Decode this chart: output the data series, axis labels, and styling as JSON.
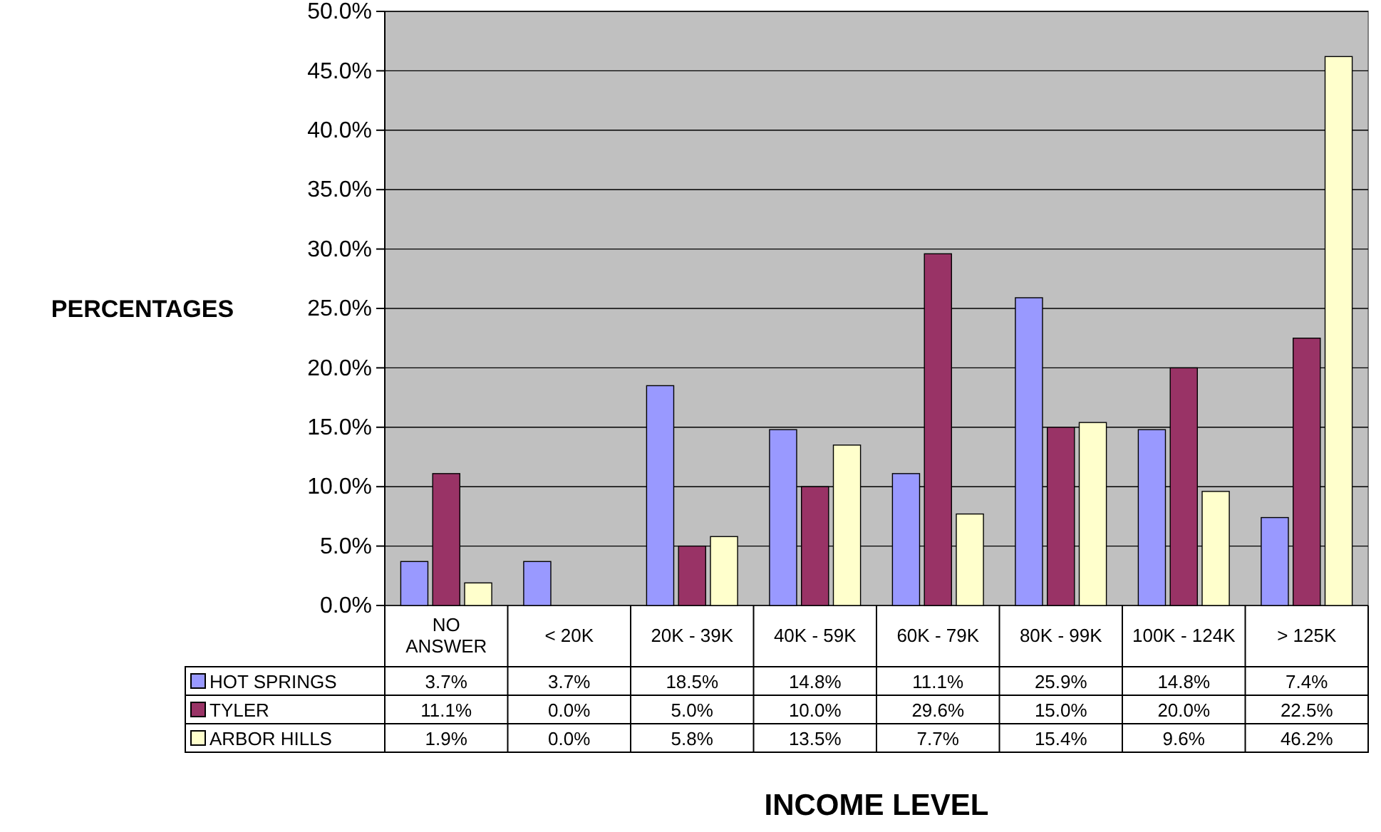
{
  "chart_data": {
    "type": "bar",
    "xlabel": "INCOME LEVEL",
    "ylabel": "PERCENTAGES",
    "categories": [
      "NO ANSWER",
      "< 20K",
      "20K - 39K",
      "40K - 59K",
      "60K - 79K",
      "80K - 99K",
      "100K - 124K",
      "> 125K"
    ],
    "series": [
      {
        "name": "HOT SPRINGS",
        "color": "#9999ff",
        "values": [
          3.7,
          3.7,
          18.5,
          14.8,
          11.1,
          25.9,
          14.8,
          7.4
        ],
        "value_labels": [
          "3.7%",
          "3.7%",
          "18.5%",
          "14.8%",
          "11.1%",
          "25.9%",
          "14.8%",
          "7.4%"
        ]
      },
      {
        "name": "TYLER",
        "color": "#993366",
        "values": [
          11.1,
          0.0,
          5.0,
          10.0,
          29.6,
          15.0,
          20.0,
          22.5
        ],
        "value_labels": [
          "11.1%",
          "0.0%",
          "5.0%",
          "10.0%",
          "29.6%",
          "15.0%",
          "20.0%",
          "22.5%"
        ]
      },
      {
        "name": "ARBOR HILLS",
        "color": "#ffffcc",
        "values": [
          1.9,
          0.0,
          5.8,
          13.5,
          7.7,
          15.4,
          9.6,
          46.2
        ],
        "value_labels": [
          "1.9%",
          "0.0%",
          "5.8%",
          "13.5%",
          "7.7%",
          "15.4%",
          "9.6%",
          "46.2%"
        ]
      }
    ],
    "ylim": [
      0,
      50
    ],
    "yticks": [
      {
        "value": 0,
        "label": "0.0%"
      },
      {
        "value": 5,
        "label": "5.0%"
      },
      {
        "value": 10,
        "label": "10.0%"
      },
      {
        "value": 15,
        "label": "15.0%"
      },
      {
        "value": 20,
        "label": "20.0%"
      },
      {
        "value": 25,
        "label": "25.0%"
      },
      {
        "value": 30,
        "label": "30.0%"
      },
      {
        "value": 35,
        "label": "35.0%"
      },
      {
        "value": 40,
        "label": "40.0%"
      },
      {
        "value": 45,
        "label": "45.0%"
      },
      {
        "value": 50,
        "label": "50.0%"
      }
    ],
    "grid": "y",
    "legend": "bottom"
  }
}
